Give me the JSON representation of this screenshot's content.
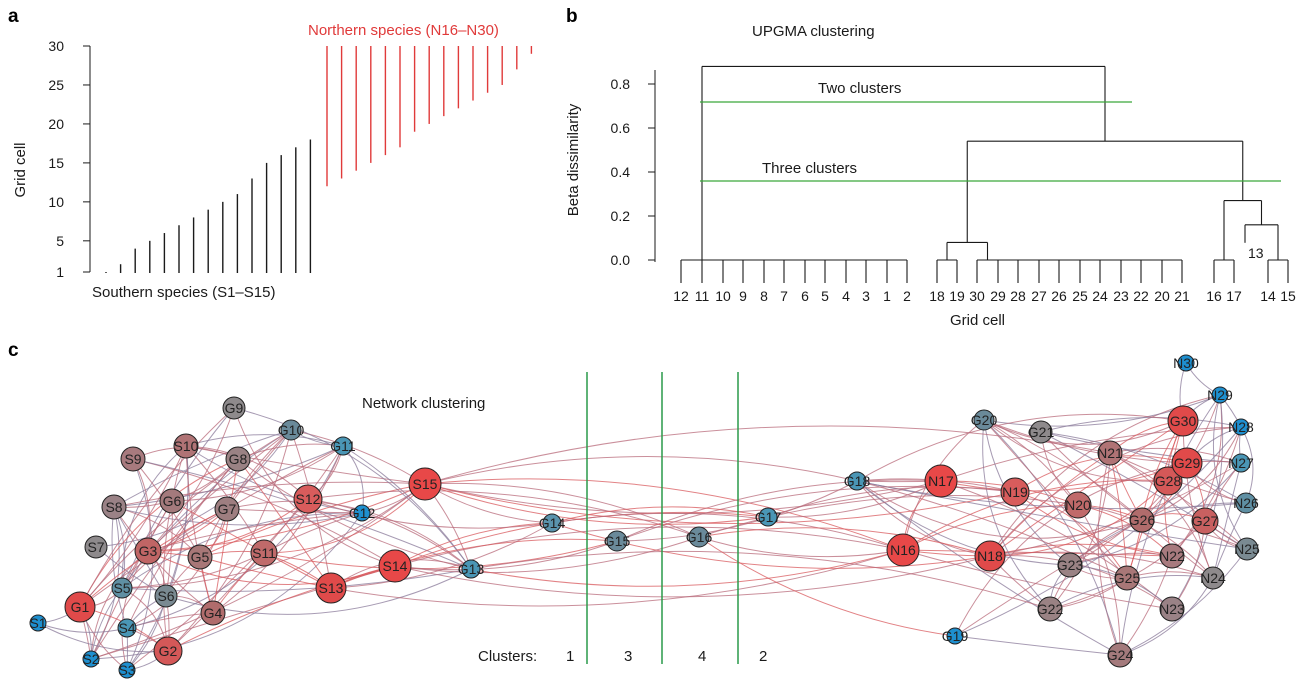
{
  "panels": {
    "a": {
      "letter": "a",
      "south_label": "Southern species (S1–S15)",
      "north_label": "Northern species (N16–N30)",
      "ylabel": "Grid cell",
      "yticks": [
        "1",
        "5",
        "10",
        "15",
        "20",
        "25",
        "30"
      ],
      "colors": {
        "south": "#1a1a1a",
        "north": "#e03a3a"
      }
    },
    "b": {
      "letter": "b",
      "title": "UPGMA clustering",
      "ylabel": "Beta dissimilarity",
      "xlabel": "Grid cell",
      "yticks": [
        "0.0",
        "0.2",
        "0.4",
        "0.6",
        "0.8"
      ],
      "leaf_labels": [
        "12",
        "11",
        "10",
        "9",
        "8",
        "7",
        "6",
        "5",
        "4",
        "3",
        "1",
        "2",
        "18",
        "19",
        "30",
        "29",
        "28",
        "27",
        "26",
        "25",
        "24",
        "23",
        "22",
        "20",
        "21",
        "16",
        "17",
        "14",
        "15"
      ],
      "extra_label": "13",
      "cut_labels": {
        "two": "Two clusters",
        "three": "Three clusters"
      },
      "cut_color": "#3aa83a"
    },
    "c": {
      "letter": "c",
      "title": "Network clustering",
      "clusters_label": "Clusters:",
      "cluster_numbers": [
        "1",
        "3",
        "4",
        "2"
      ],
      "divider_color": "#2a9a4a"
    }
  },
  "chart_data": [
    {
      "type": "bar",
      "panel": "a",
      "series": [
        {
          "name": "Southern species (S1–S15)",
          "ranges": [
            [
              1,
              1
            ],
            [
              1,
              2
            ],
            [
              1,
              4
            ],
            [
              1,
              5
            ],
            [
              1,
              6
            ],
            [
              1,
              7
            ],
            [
              1,
              8
            ],
            [
              1,
              9
            ],
            [
              1,
              10
            ],
            [
              1,
              11
            ],
            [
              1,
              13
            ],
            [
              1,
              15
            ],
            [
              1,
              16
            ],
            [
              1,
              17
            ],
            [
              1,
              18
            ]
          ]
        },
        {
          "name": "Northern species (N16–N30)",
          "ranges": [
            [
              12,
              30
            ],
            [
              13,
              30
            ],
            [
              14,
              30
            ],
            [
              15,
              30
            ],
            [
              16,
              30
            ],
            [
              17,
              30
            ],
            [
              19,
              30
            ],
            [
              20,
              30
            ],
            [
              21,
              30
            ],
            [
              22,
              30
            ],
            [
              23,
              30
            ],
            [
              24,
              30
            ],
            [
              25,
              30
            ],
            [
              27,
              30
            ],
            [
              29,
              30
            ]
          ]
        }
      ],
      "ylabel": "Grid cell",
      "ylim": [
        1,
        30
      ]
    },
    {
      "type": "dendrogram",
      "panel": "b",
      "title": "UPGMA clustering",
      "ylabel": "Beta dissimilarity",
      "xlabel": "Grid cell",
      "ylim": [
        0,
        0.9
      ],
      "cuts": [
        {
          "name": "Two clusters",
          "height": 0.71
        },
        {
          "name": "Three clusters",
          "height": 0.355
        }
      ],
      "merges": [
        {
          "group": "12,11,10,9,8,7,6,5,4,3,1,2",
          "height": 0.0
        },
        {
          "group": "18,19",
          "height": 0.0
        },
        {
          "group": "30,29,28,27,26,25,24,23,22,20,21",
          "height": 0.0
        },
        {
          "group": "18,19 + 30..21",
          "height": 0.08
        },
        {
          "group": "16,17",
          "height": 0.0
        },
        {
          "group": "14,15",
          "height": 0.0
        },
        {
          "group": "13 + 14,15",
          "height": 0.16
        },
        {
          "group": "16,17 + 13,14,15",
          "height": 0.27
        },
        {
          "group": "18..21 + 16..15",
          "height": 0.54
        },
        {
          "group": "all",
          "height": 0.88
        }
      ]
    }
  ],
  "network": {
    "nodes": [
      {
        "id": "S1",
        "label": "S1",
        "color": "#1e8fcf",
        "r": 8
      },
      {
        "id": "S2",
        "label": "S2",
        "color": "#1e8fcf",
        "r": 8
      },
      {
        "id": "S3",
        "label": "S3",
        "color": "#1e8fcf",
        "r": 8
      },
      {
        "id": "S4",
        "label": "S4",
        "color": "#4a96b5",
        "r": 9
      },
      {
        "id": "S5",
        "label": "S5",
        "color": "#5f8fa3",
        "r": 10
      },
      {
        "id": "S6",
        "label": "S6",
        "color": "#7a8a92",
        "r": 11
      },
      {
        "id": "S7",
        "label": "S7",
        "color": "#8e8a8c",
        "r": 11
      },
      {
        "id": "S8",
        "label": "S8",
        "color": "#9a8286",
        "r": 12
      },
      {
        "id": "S9",
        "label": "S9",
        "color": "#a87a7e",
        "r": 12
      },
      {
        "id": "S10",
        "label": "S10",
        "color": "#b07375",
        "r": 12
      },
      {
        "id": "S11",
        "label": "S11",
        "color": "#c06a6a",
        "r": 13
      },
      {
        "id": "S12",
        "label": "S12",
        "color": "#d85c5c",
        "r": 14
      },
      {
        "id": "S13",
        "label": "S13",
        "color": "#e04a4a",
        "r": 15
      },
      {
        "id": "S14",
        "label": "S14",
        "color": "#e84848",
        "r": 16
      },
      {
        "id": "S15",
        "label": "S15",
        "color": "#e84848",
        "r": 16
      },
      {
        "id": "G1",
        "label": "G1",
        "color": "#e04a4a",
        "r": 15
      },
      {
        "id": "G2",
        "label": "G2",
        "color": "#d45858",
        "r": 14
      },
      {
        "id": "G3",
        "label": "G3",
        "color": "#c06565",
        "r": 13
      },
      {
        "id": "G4",
        "label": "G4",
        "color": "#b06c6c",
        "r": 12
      },
      {
        "id": "G5",
        "label": "G5",
        "color": "#a87777",
        "r": 12
      },
      {
        "id": "G6",
        "label": "G6",
        "color": "#a47a7c",
        "r": 12
      },
      {
        "id": "G7",
        "label": "G7",
        "color": "#9e7e80",
        "r": 12
      },
      {
        "id": "G8",
        "label": "G8",
        "color": "#9a8284",
        "r": 12
      },
      {
        "id": "G9",
        "label": "G9",
        "color": "#8e8a8c",
        "r": 11
      },
      {
        "id": "G10",
        "label": "G10",
        "color": "#6a8a9a",
        "r": 10
      },
      {
        "id": "G11",
        "label": "G11",
        "color": "#4a96b5",
        "r": 9
      },
      {
        "id": "G12",
        "label": "G12",
        "color": "#1e8fcf",
        "r": 8
      },
      {
        "id": "G13",
        "label": "G13",
        "color": "#4a96b5",
        "r": 9
      },
      {
        "id": "G14",
        "label": "G14",
        "color": "#5a93ad",
        "r": 9
      },
      {
        "id": "G15",
        "label": "G15",
        "color": "#6a8a9a",
        "r": 10
      },
      {
        "id": "G16",
        "label": "G16",
        "color": "#6a8a9a",
        "r": 10
      },
      {
        "id": "G17",
        "label": "G17",
        "color": "#4a96b5",
        "r": 9
      },
      {
        "id": "G18",
        "label": "G18",
        "color": "#4a96b5",
        "r": 9
      },
      {
        "id": "G19",
        "label": "G19",
        "color": "#1e8fcf",
        "r": 8
      },
      {
        "id": "G20",
        "label": "G20",
        "color": "#6a8a9a",
        "r": 10
      },
      {
        "id": "G21",
        "label": "G21",
        "color": "#8e8a8c",
        "r": 11
      },
      {
        "id": "G22",
        "label": "G22",
        "color": "#9a8284",
        "r": 12
      },
      {
        "id": "G23",
        "label": "G23",
        "color": "#9a8284",
        "r": 12
      },
      {
        "id": "G24",
        "label": "G24",
        "color": "#a47a7c",
        "r": 12
      },
      {
        "id": "G25",
        "label": "G25",
        "color": "#a87777",
        "r": 12
      },
      {
        "id": "G26",
        "label": "G26",
        "color": "#b06c6c",
        "r": 12
      },
      {
        "id": "G27",
        "label": "G27",
        "color": "#c86060",
        "r": 13
      },
      {
        "id": "G28",
        "label": "G28",
        "color": "#d45858",
        "r": 14
      },
      {
        "id": "G29",
        "label": "G29",
        "color": "#e04a4a",
        "r": 15
      },
      {
        "id": "G30",
        "label": "G30",
        "color": "#e04a4a",
        "r": 15
      },
      {
        "id": "N16",
        "label": "N16",
        "color": "#e84848",
        "r": 16
      },
      {
        "id": "N17",
        "label": "N17",
        "color": "#e84848",
        "r": 16
      },
      {
        "id": "N18",
        "label": "N18",
        "color": "#e04a4a",
        "r": 15
      },
      {
        "id": "N19",
        "label": "N19",
        "color": "#d85c5c",
        "r": 14
      },
      {
        "id": "N20",
        "label": "N20",
        "color": "#c06a6a",
        "r": 13
      },
      {
        "id": "N21",
        "label": "N21",
        "color": "#b07375",
        "r": 12
      },
      {
        "id": "N22",
        "label": "N22",
        "color": "#a87a7e",
        "r": 12
      },
      {
        "id": "N23",
        "label": "N23",
        "color": "#9a8286",
        "r": 12
      },
      {
        "id": "N24",
        "label": "N24",
        "color": "#8e8a8c",
        "r": 11
      },
      {
        "id": "N25",
        "label": "N25",
        "color": "#7a8a92",
        "r": 11
      },
      {
        "id": "N26",
        "label": "N26",
        "color": "#5f8fa3",
        "r": 10
      },
      {
        "id": "N27",
        "label": "N27",
        "color": "#4a96b5",
        "r": 9
      },
      {
        "id": "N28",
        "label": "N28",
        "color": "#1e8fcf",
        "r": 8
      },
      {
        "id": "N29",
        "label": "N29",
        "color": "#1e8fcf",
        "r": 8
      },
      {
        "id": "N30",
        "label": "N30",
        "color": "#1e8fcf",
        "r": 8
      }
    ]
  }
}
